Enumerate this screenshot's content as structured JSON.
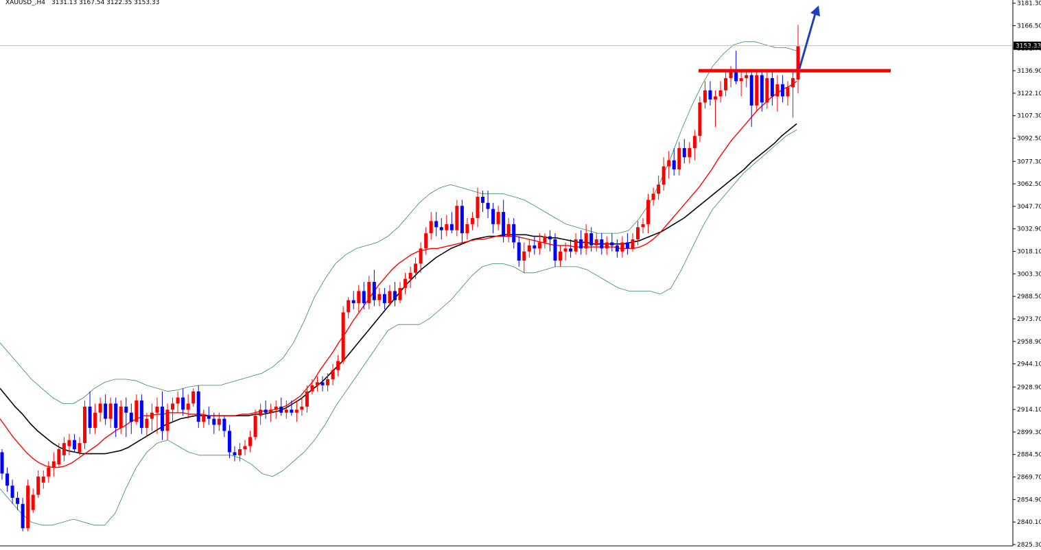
{
  "header": {
    "symbol": "XAUUSD_,H4",
    "ohlc": "3131.13 3167.54 3122.35 3153.33"
  },
  "colors": {
    "bull": "#ff0000",
    "bear": "#0000ff",
    "ma_fast": "#ff0000",
    "ma_slow": "#000000",
    "bands": "#2e8b57",
    "resistance": "#ff0000",
    "arrow": "#1f3fbf",
    "price_line": "#c0c0c0",
    "price_tag_bg": "#000000",
    "price_tag_text": "#ffffff"
  },
  "price_tag": "3153.33",
  "chart_data": {
    "type": "candlestick",
    "y_axis_labels": [
      "3181.30",
      "3166.50",
      "3151.70",
      "3136.90",
      "3122.10",
      "3107.30",
      "3092.50",
      "3077.30",
      "3062.50",
      "3047.70",
      "3032.90",
      "3018.10",
      "3003.30",
      "2988.50",
      "2973.70",
      "2958.90",
      "2944.10",
      "2928.90",
      "2914.10",
      "2899.30",
      "2884.50",
      "2869.70",
      "2854.90",
      "2840.10",
      "2825.30"
    ],
    "y_axis_values": [
      3181.3,
      3166.5,
      3151.7,
      3136.9,
      3122.1,
      3107.3,
      3092.5,
      3077.3,
      3062.5,
      3047.7,
      3032.9,
      3018.1,
      3003.3,
      2988.5,
      2973.7,
      2958.9,
      2944.1,
      2928.9,
      2914.1,
      2899.3,
      2884.5,
      2869.7,
      2854.9,
      2840.1,
      2825.3
    ],
    "ylim": [
      2825.3,
      3182.5
    ],
    "current_price": 3153.33,
    "resistance_level": 3136.9,
    "candles": [
      [
        2886,
        2888,
        2868,
        2872
      ],
      [
        2872,
        2876,
        2860,
        2864
      ],
      [
        2864,
        2868,
        2852,
        2856
      ],
      [
        2856,
        2860,
        2848,
        2852
      ],
      [
        2852,
        2856,
        2834,
        2836
      ],
      [
        2836,
        2868,
        2834,
        2864
      ],
      [
        2848,
        2862,
        2846,
        2858
      ],
      [
        2858,
        2874,
        2856,
        2870
      ],
      [
        2866,
        2874,
        2862,
        2870
      ],
      [
        2870,
        2880,
        2866,
        2876
      ],
      [
        2876,
        2886,
        2870,
        2880
      ],
      [
        2878,
        2892,
        2876,
        2888
      ],
      [
        2884,
        2896,
        2880,
        2892
      ],
      [
        2890,
        2898,
        2884,
        2894
      ],
      [
        2894,
        2898,
        2886,
        2888
      ],
      [
        2886,
        2896,
        2884,
        2892
      ],
      [
        2892,
        2920,
        2888,
        2916
      ],
      [
        2916,
        2926,
        2898,
        2902
      ],
      [
        2902,
        2918,
        2898,
        2912
      ],
      [
        2912,
        2922,
        2906,
        2918
      ],
      [
        2918,
        2924,
        2904,
        2908
      ],
      [
        2908,
        2922,
        2902,
        2918
      ],
      [
        2918,
        2922,
        2896,
        2902
      ],
      [
        2902,
        2920,
        2898,
        2916
      ],
      [
        2916,
        2922,
        2896,
        2912
      ],
      [
        2912,
        2918,
        2898,
        2906
      ],
      [
        2906,
        2924,
        2904,
        2920
      ],
      [
        2920,
        2924,
        2898,
        2902
      ],
      [
        2902,
        2912,
        2896,
        2908
      ],
      [
        2908,
        2918,
        2900,
        2912
      ],
      [
        2912,
        2922,
        2898,
        2916
      ],
      [
        2916,
        2926,
        2894,
        2900
      ],
      [
        2900,
        2918,
        2894,
        2914
      ],
      [
        2914,
        2922,
        2906,
        2918
      ],
      [
        2918,
        2926,
        2912,
        2922
      ],
      [
        2922,
        2928,
        2910,
        2914
      ],
      [
        2914,
        2924,
        2908,
        2918
      ],
      [
        2918,
        2928,
        2916,
        2926
      ],
      [
        2926,
        2930,
        2902,
        2906
      ],
      [
        2906,
        2914,
        2902,
        2910
      ],
      [
        2910,
        2916,
        2904,
        2908
      ],
      [
        2908,
        2912,
        2898,
        2904
      ],
      [
        2904,
        2912,
        2900,
        2908
      ],
      [
        2908,
        2910,
        2896,
        2900
      ],
      [
        2900,
        2904,
        2882,
        2886
      ],
      [
        2886,
        2890,
        2880,
        2884
      ],
      [
        2884,
        2892,
        2880,
        2888
      ],
      [
        2888,
        2894,
        2884,
        2890
      ],
      [
        2890,
        2900,
        2886,
        2896
      ],
      [
        2896,
        2914,
        2894,
        2910
      ],
      [
        2910,
        2918,
        2904,
        2914
      ],
      [
        2914,
        2920,
        2908,
        2912
      ],
      [
        2912,
        2918,
        2906,
        2914
      ],
      [
        2914,
        2920,
        2908,
        2916
      ],
      [
        2916,
        2922,
        2910,
        2912
      ],
      [
        2912,
        2920,
        2908,
        2914
      ],
      [
        2914,
        2920,
        2910,
        2912
      ],
      [
        2912,
        2920,
        2906,
        2914
      ],
      [
        2914,
        2922,
        2910,
        2916
      ],
      [
        2916,
        2930,
        2912,
        2926
      ],
      [
        2926,
        2934,
        2924,
        2930
      ],
      [
        2930,
        2936,
        2926,
        2932
      ],
      [
        2932,
        2936,
        2926,
        2930
      ],
      [
        2930,
        2938,
        2926,
        2934
      ],
      [
        2934,
        2944,
        2930,
        2940
      ],
      [
        2940,
        2950,
        2936,
        2946
      ],
      [
        2946,
        2982,
        2944,
        2978
      ],
      [
        2978,
        2988,
        2974,
        2986
      ],
      [
        2986,
        2992,
        2980,
        2984
      ],
      [
        2984,
        2996,
        2978,
        2992
      ],
      [
        2992,
        2998,
        2980,
        2984
      ],
      [
        2984,
        3002,
        2980,
        2998
      ],
      [
        2998,
        3006,
        2982,
        2986
      ],
      [
        2986,
        2994,
        2982,
        2990
      ],
      [
        2990,
        2994,
        2980,
        2984
      ],
      [
        2984,
        2996,
        2982,
        2992
      ],
      [
        2992,
        2998,
        2982,
        2986
      ],
      [
        2986,
        2998,
        2984,
        2994
      ],
      [
        2994,
        3004,
        2990,
        3000
      ],
      [
        3000,
        3008,
        2994,
        3004
      ],
      [
        3004,
        3014,
        3000,
        3010
      ],
      [
        3010,
        3024,
        3004,
        3020
      ],
      [
        3020,
        3034,
        3016,
        3030
      ],
      [
        3030,
        3044,
        3026,
        3038
      ],
      [
        3038,
        3044,
        3028,
        3034
      ],
      [
        3034,
        3040,
        3026,
        3032
      ],
      [
        3032,
        3042,
        3028,
        3036
      ],
      [
        3036,
        3044,
        3030,
        3032
      ],
      [
        3032,
        3052,
        3028,
        3048
      ],
      [
        3048,
        3052,
        3024,
        3030
      ],
      [
        3030,
        3040,
        3026,
        3036
      ],
      [
        3036,
        3044,
        3032,
        3040
      ],
      [
        3040,
        3060,
        3034,
        3054
      ],
      [
        3054,
        3058,
        3044,
        3050
      ],
      [
        3050,
        3058,
        3040,
        3046
      ],
      [
        3046,
        3050,
        3030,
        3036
      ],
      [
        3036,
        3048,
        3032,
        3044
      ],
      [
        3044,
        3052,
        3024,
        3028
      ],
      [
        3028,
        3040,
        3024,
        3036
      ],
      [
        3036,
        3040,
        3020,
        3024
      ],
      [
        3024,
        3028,
        3008,
        3012
      ],
      [
        3012,
        3024,
        3004,
        3018
      ],
      [
        3018,
        3026,
        3014,
        3022
      ],
      [
        3022,
        3028,
        3016,
        3020
      ],
      [
        3020,
        3030,
        3016,
        3024
      ],
      [
        3024,
        3030,
        3020,
        3028
      ],
      [
        3028,
        3032,
        3018,
        3026
      ],
      [
        3026,
        3030,
        3008,
        3012
      ],
      [
        3012,
        3022,
        3008,
        3018
      ],
      [
        3018,
        3024,
        3012,
        3020
      ],
      [
        3020,
        3026,
        3014,
        3018
      ],
      [
        3018,
        3030,
        3016,
        3026
      ],
      [
        3026,
        3032,
        3016,
        3020
      ],
      [
        3020,
        3036,
        3016,
        3030
      ],
      [
        3030,
        3034,
        3018,
        3022
      ],
      [
        3022,
        3030,
        3018,
        3026
      ],
      [
        3026,
        3030,
        3016,
        3020
      ],
      [
        3020,
        3028,
        3016,
        3024
      ],
      [
        3024,
        3030,
        3018,
        3022
      ],
      [
        3022,
        3026,
        3014,
        3018
      ],
      [
        3018,
        3028,
        3014,
        3024
      ],
      [
        3024,
        3030,
        3016,
        3020
      ],
      [
        3020,
        3030,
        3018,
        3026
      ],
      [
        3026,
        3038,
        3022,
        3034
      ],
      [
        3034,
        3040,
        3030,
        3036
      ],
      [
        3036,
        3056,
        3030,
        3052
      ],
      [
        3052,
        3060,
        3048,
        3056
      ],
      [
        3056,
        3068,
        3052,
        3062
      ],
      [
        3062,
        3080,
        3058,
        3074
      ],
      [
        3074,
        3084,
        3066,
        3078
      ],
      [
        3078,
        3086,
        3068,
        3072
      ],
      [
        3072,
        3090,
        3068,
        3086
      ],
      [
        3086,
        3092,
        3076,
        3080
      ],
      [
        3080,
        3090,
        3076,
        3086
      ],
      [
        3086,
        3098,
        3078,
        3094
      ],
      [
        3094,
        3120,
        3090,
        3116
      ],
      [
        3116,
        3130,
        3112,
        3124
      ],
      [
        3124,
        3130,
        3114,
        3118
      ],
      [
        3118,
        3124,
        3100,
        3120
      ],
      [
        3120,
        3130,
        3116,
        3124
      ],
      [
        3124,
        3136,
        3120,
        3132
      ],
      [
        3132,
        3140,
        3126,
        3136
      ],
      [
        3136,
        3150,
        3128,
        3130
      ],
      [
        3130,
        3136,
        3120,
        3132
      ],
      [
        3132,
        3138,
        3126,
        3134
      ],
      [
        3134,
        3138,
        3100,
        3114
      ],
      [
        3114,
        3136,
        3110,
        3134
      ],
      [
        3134,
        3138,
        3110,
        3116
      ],
      [
        3116,
        3136,
        3112,
        3132
      ],
      [
        3132,
        3136,
        3114,
        3120
      ],
      [
        3120,
        3134,
        3110,
        3128
      ],
      [
        3128,
        3134,
        3116,
        3120
      ],
      [
        3120,
        3130,
        3114,
        3126
      ],
      [
        3126,
        3138,
        3106,
        3132
      ],
      [
        3131,
        3167,
        3122,
        3153
      ]
    ],
    "ma_fast": [
      2908,
      2902,
      2896,
      2891,
      2886,
      2882,
      2879,
      2877,
      2876,
      2876,
      2877,
      2879,
      2882,
      2885,
      2888,
      2891,
      2895,
      2898,
      2901,
      2903,
      2906,
      2908,
      2910,
      2910,
      2911,
      2911,
      2912,
      2912,
      2912,
      2911,
      2911,
      2911,
      2910,
      2910,
      2910,
      2910,
      2910,
      2911,
      2911,
      2912,
      2913,
      2913,
      2914,
      2915,
      2917,
      2920,
      2923,
      2928,
      2933,
      2940,
      2946,
      2952,
      2959,
      2965,
      2972,
      2978,
      2984,
      2990,
      2996,
      3001,
      3006,
      3010,
      3013,
      3016,
      3018,
      3019,
      3020,
      3020,
      3021,
      3022,
      3023,
      3024,
      3025,
      3026,
      3026,
      3027,
      3028,
      3028,
      3028,
      3028,
      3027,
      3026,
      3025,
      3024,
      3023,
      3022,
      3022,
      3022,
      3021,
      3021,
      3021,
      3021,
      3021,
      3021,
      3021,
      3020,
      3020,
      3020,
      3021,
      3023,
      3026,
      3030,
      3035,
      3040,
      3045,
      3050,
      3055,
      3060,
      3066,
      3072,
      3079,
      3085,
      3091,
      3096,
      3101,
      3106,
      3111,
      3115,
      3119,
      3122,
      3125,
      3127,
      3130
    ],
    "ma_slow": [
      2928,
      2922,
      2916,
      2911,
      2905,
      2900,
      2896,
      2892,
      2889,
      2887,
      2886,
      2885,
      2885,
      2885,
      2885,
      2886,
      2887,
      2889,
      2892,
      2895,
      2898,
      2901,
      2904,
      2906,
      2908,
      2909,
      2910,
      2910,
      2910,
      2910,
      2910,
      2910,
      2910,
      2910,
      2911,
      2911,
      2912,
      2913,
      2915,
      2918,
      2921,
      2925,
      2929,
      2933,
      2938,
      2943,
      2948,
      2954,
      2960,
      2966,
      2972,
      2978,
      2984,
      2990,
      2996,
      3001,
      3006,
      3010,
      3014,
      3017,
      3020,
      3022,
      3024,
      3026,
      3027,
      3028,
      3028,
      3029,
      3029,
      3029,
      3029,
      3028,
      3028,
      3027,
      3027,
      3026,
      3025,
      3024,
      3024,
      3023,
      3023,
      3023,
      3023,
      3023,
      3024,
      3025,
      3027,
      3029,
      3031,
      3034,
      3037,
      3040,
      3044,
      3048,
      3052,
      3056,
      3060,
      3064,
      3068,
      3072,
      3077,
      3081,
      3085,
      3089,
      3094,
      3098,
      3102
    ],
    "bb_upper": [
      2958,
      2950,
      2942,
      2934,
      2928,
      2922,
      2918,
      2918,
      2922,
      2928,
      2932,
      2934,
      2934,
      2933,
      2930,
      2928,
      2926,
      2927,
      2929,
      2930,
      2930,
      2930,
      2932,
      2934,
      2936,
      2938,
      2942,
      2948,
      2958,
      2972,
      2988,
      3000,
      3010,
      3016,
      3020,
      3022,
      3024,
      3028,
      3034,
      3042,
      3050,
      3056,
      3060,
      3062,
      3060,
      3058,
      3056,
      3056,
      3056,
      3054,
      3052,
      3048,
      3044,
      3040,
      3036,
      3034,
      3032,
      3030,
      3030,
      3030,
      3032,
      3040,
      3050,
      3064,
      3080,
      3098,
      3114,
      3128,
      3140,
      3148,
      3154,
      3156,
      3156,
      3154,
      3152,
      3152,
      3150
    ],
    "bb_lower": [
      2862,
      2854,
      2846,
      2840,
      2838,
      2838,
      2840,
      2842,
      2840,
      2838,
      2838,
      2846,
      2862,
      2876,
      2886,
      2892,
      2894,
      2890,
      2886,
      2884,
      2884,
      2884,
      2884,
      2882,
      2878,
      2872,
      2870,
      2874,
      2880,
      2886,
      2894,
      2904,
      2916,
      2926,
      2936,
      2946,
      2956,
      2966,
      2970,
      2970,
      2970,
      2974,
      2980,
      2986,
      2994,
      3002,
      3008,
      3010,
      3010,
      3008,
      3004,
      3004,
      3006,
      3008,
      3008,
      3008,
      3006,
      3002,
      2998,
      2994,
      2992,
      2992,
      2992,
      2990,
      2994,
      3006,
      3020,
      3034,
      3046,
      3054,
      3062,
      3070,
      3076,
      3082,
      3088,
      3094,
      3098
    ]
  }
}
